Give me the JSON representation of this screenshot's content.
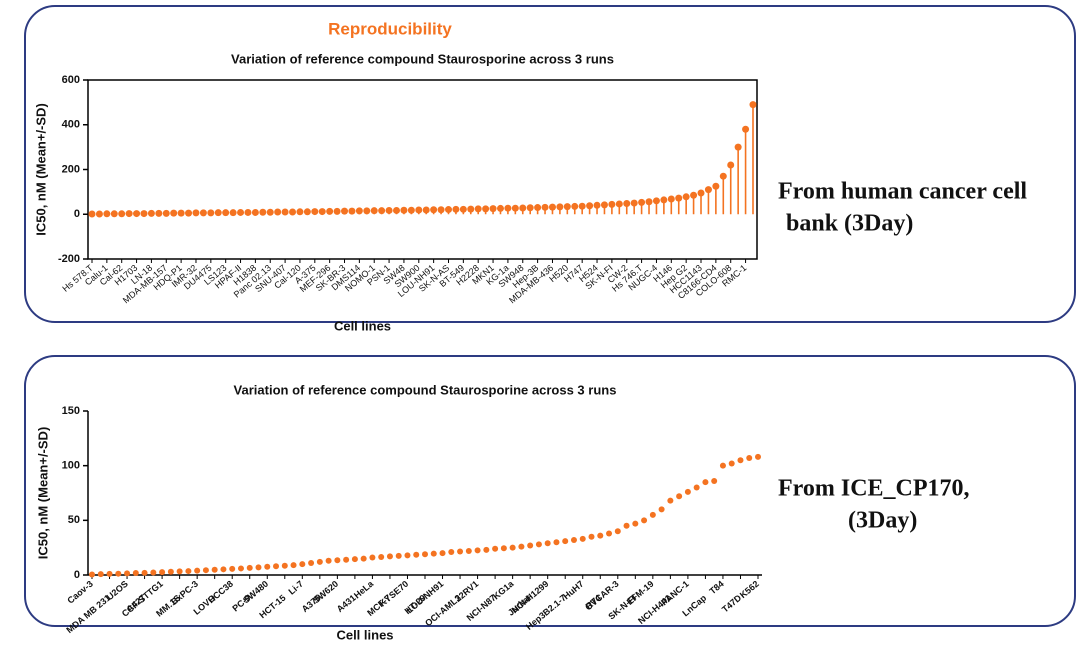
{
  "header": {
    "title": "Reproducibility"
  },
  "chart_data": [
    {
      "type": "lollipop",
      "title": "Variation of  reference compound Staurosporine across 3 runs",
      "x_label": "Cell lines",
      "y_label": "IC50, nM  (Mean+/-SD)",
      "color": "#f47321",
      "ylim": [
        -200,
        600
      ],
      "yticks": [
        -200,
        0,
        200,
        400,
        600
      ],
      "categories": [
        "Hs 578.T",
        null,
        "Calu-1",
        null,
        "Cal-62",
        null,
        "H1703",
        null,
        "LN-18",
        null,
        "MDA-MB-157",
        null,
        "HDQ-P1",
        null,
        "IMR-32",
        null,
        "DU4475",
        null,
        "LS123",
        null,
        "HPAF-II",
        null,
        "H1838",
        null,
        "Panc 02.13",
        null,
        "SNU-407",
        null,
        "Cal-120",
        null,
        "A-375",
        null,
        "MEF-296",
        null,
        "SK-BR-3",
        null,
        "DMS114",
        null,
        "NOMO-1",
        null,
        "PSN-1",
        null,
        "SW48",
        null,
        "SW900",
        null,
        "LOU-NH91",
        null,
        "SK-N-AS",
        null,
        "BT-549",
        null,
        "H2228",
        null,
        "MKN1",
        null,
        "KG-1a",
        null,
        "SW948",
        null,
        "Hep-3B",
        null,
        "MDA-MB-436",
        null,
        "H520",
        null,
        "H747",
        null,
        "H524",
        null,
        "SK-N-FI",
        null,
        "CW-2",
        null,
        "Hs 746.T",
        null,
        "NUGC-4",
        null,
        "H146",
        null,
        "Hep G2",
        null,
        "HCC1143",
        null,
        "C8166-CD4",
        null,
        "COLO-608",
        null,
        "RMC-1",
        null
      ],
      "values": [
        1,
        1,
        2,
        2,
        2,
        3,
        3,
        3,
        4,
        4,
        4,
        5,
        5,
        5,
        6,
        6,
        6,
        7,
        7,
        7,
        8,
        8,
        8,
        9,
        9,
        10,
        10,
        10,
        11,
        11,
        12,
        12,
        13,
        13,
        14,
        14,
        15,
        15,
        16,
        16,
        17,
        17,
        18,
        18,
        19,
        19,
        20,
        20,
        21,
        22,
        22,
        23,
        24,
        24,
        25,
        26,
        27,
        27,
        28,
        29,
        30,
        31,
        32,
        33,
        34,
        35,
        36,
        38,
        40,
        42,
        44,
        46,
        48,
        50,
        53,
        56,
        60,
        64,
        68,
        72,
        78,
        85,
        95,
        110,
        125,
        170,
        220,
        300,
        380,
        490
      ]
    },
    {
      "type": "dot",
      "title": "Variation of  reference compound Staurosporine across 3 runs",
      "x_label": "Cell lines",
      "y_label": "IC50, nM  (Mean+/-SD)",
      "color": "#f47321",
      "ylim": [
        0,
        150
      ],
      "yticks": [
        0,
        50,
        100,
        150
      ],
      "categories": [
        "Caov-3",
        null,
        "MDA MB 231",
        null,
        "U2OS",
        null,
        "A427",
        null,
        "CCF-STTG1",
        null,
        "MM.1S",
        null,
        "BxPC-3",
        null,
        "LOVO",
        null,
        "HCC38",
        null,
        "PC-9",
        null,
        "SW480",
        null,
        "HCT-15",
        null,
        "Li-7",
        null,
        "A375",
        null,
        "SW620",
        null,
        "A431",
        null,
        "HeLa",
        null,
        "MCF-7",
        null,
        "KYSE70",
        null,
        "HT-29",
        null,
        "LOU-NH91",
        null,
        "OCI-AML3",
        null,
        "22RV1",
        null,
        "NCI-N87",
        null,
        "KG1a",
        null,
        "Jurkat",
        null,
        "NCI-H1299",
        null,
        "Hep3B2.1-7",
        null,
        "HuH7",
        null,
        "RT4",
        null,
        "OVCAR-3",
        null,
        "SK-N-FI",
        null,
        "EFM-19",
        null,
        "NCI-H441",
        null,
        "PANC-1",
        null,
        "LnCap",
        null,
        "T84",
        null,
        "T47D",
        null,
        "K562"
      ],
      "values": [
        0.5,
        0.8,
        1,
        1.2,
        1.5,
        1.8,
        2,
        2.3,
        2.6,
        3,
        3.3,
        3.6,
        4,
        4.4,
        4.8,
        5.2,
        5.6,
        6,
        6.5,
        7,
        7.5,
        8,
        8.5,
        9,
        10,
        11,
        12,
        13,
        13.5,
        14,
        14.5,
        15,
        16,
        16.5,
        17,
        17.5,
        18,
        18.5,
        19,
        19.5,
        20,
        21,
        21.5,
        22,
        22.5,
        23,
        24,
        24.5,
        25,
        26,
        27,
        28,
        29,
        30,
        31,
        32,
        33,
        35,
        36,
        38,
        40,
        45,
        47,
        50,
        55,
        60,
        68,
        72,
        76,
        80,
        85,
        86,
        100,
        102,
        105,
        107,
        108
      ]
    }
  ],
  "notes": [
    {
      "lines": [
        "From human cancer cell",
        "bank    (3Day)"
      ]
    },
    {
      "lines": [
        "From ICE_CP170,",
        "(3Day)"
      ]
    }
  ]
}
